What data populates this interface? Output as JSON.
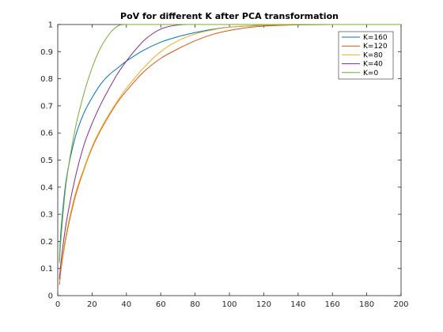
{
  "chart_data": {
    "type": "line",
    "title": "PoV for different K after PCA transformation",
    "xlabel": "",
    "ylabel": "",
    "xlim": [
      0,
      200
    ],
    "ylim": [
      0,
      1
    ],
    "x_ticks": [
      0,
      20,
      40,
      60,
      80,
      100,
      120,
      140,
      160,
      180,
      200
    ],
    "y_ticks": [
      0,
      0.1,
      0.2,
      0.3,
      0.4,
      0.5,
      0.6,
      0.7,
      0.8,
      0.9,
      1
    ],
    "grid": false,
    "legend_position": "top-right",
    "series": [
      {
        "name": "K=160",
        "color": "#0072BD",
        "x": [
          1,
          2,
          5,
          10,
          15,
          20,
          25,
          30,
          35,
          40,
          50,
          60,
          70,
          80,
          90,
          100,
          120,
          140,
          160,
          180,
          200
        ],
        "y": [
          0.13,
          0.25,
          0.43,
          0.58,
          0.67,
          0.73,
          0.78,
          0.815,
          0.84,
          0.865,
          0.905,
          0.935,
          0.955,
          0.97,
          0.982,
          0.99,
          0.997,
          0.999,
          1.0,
          1.0,
          1.0
        ]
      },
      {
        "name": "K=120",
        "color": "#D95319",
        "x": [
          1,
          2,
          5,
          10,
          15,
          20,
          25,
          30,
          35,
          40,
          50,
          60,
          70,
          80,
          90,
          100,
          110,
          120,
          130,
          140,
          160,
          180,
          200
        ],
        "y": [
          0.04,
          0.1,
          0.22,
          0.36,
          0.46,
          0.545,
          0.61,
          0.665,
          0.715,
          0.755,
          0.825,
          0.875,
          0.91,
          0.94,
          0.963,
          0.978,
          0.988,
          0.994,
          0.997,
          0.999,
          1.0,
          1.0,
          1.0
        ]
      },
      {
        "name": "K=80",
        "color": "#EDB120",
        "x": [
          1,
          2,
          5,
          10,
          15,
          20,
          25,
          30,
          35,
          40,
          50,
          60,
          70,
          80,
          90,
          100,
          110,
          120,
          130,
          140,
          160,
          180,
          200
        ],
        "y": [
          0.05,
          0.11,
          0.23,
          0.37,
          0.465,
          0.55,
          0.615,
          0.67,
          0.72,
          0.765,
          0.84,
          0.9,
          0.94,
          0.965,
          0.98,
          0.99,
          0.995,
          0.998,
          0.999,
          1.0,
          1.0,
          1.0,
          1.0
        ]
      },
      {
        "name": "K=40",
        "color": "#7E2F8E",
        "x": [
          1,
          2,
          5,
          10,
          15,
          20,
          25,
          30,
          35,
          40,
          45,
          50,
          55,
          60,
          65,
          70,
          75,
          80,
          100,
          120,
          140,
          160,
          180,
          200
        ],
        "y": [
          0.06,
          0.13,
          0.27,
          0.43,
          0.55,
          0.635,
          0.705,
          0.765,
          0.82,
          0.865,
          0.905,
          0.94,
          0.965,
          0.983,
          0.993,
          0.998,
          1.0,
          1.0,
          1.0,
          1.0,
          1.0,
          1.0,
          1.0,
          1.0
        ]
      },
      {
        "name": "K=0",
        "color": "#77AC30",
        "x": [
          1,
          2,
          5,
          10,
          15,
          20,
          25,
          30,
          33,
          36,
          40,
          60,
          80,
          100,
          120,
          140,
          160,
          180,
          200
        ],
        "y": [
          0.12,
          0.22,
          0.42,
          0.61,
          0.74,
          0.84,
          0.915,
          0.965,
          0.985,
          0.997,
          1.0,
          1.0,
          1.0,
          1.0,
          1.0,
          1.0,
          1.0,
          1.0,
          1.0
        ]
      }
    ]
  }
}
